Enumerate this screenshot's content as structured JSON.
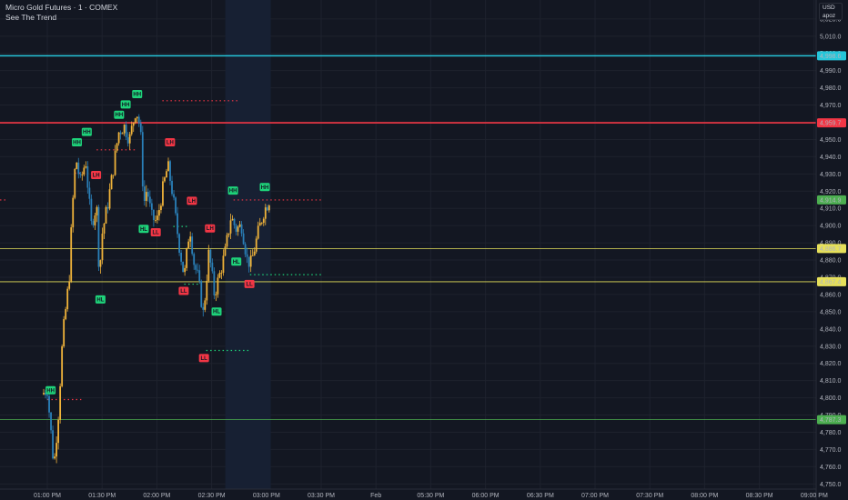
{
  "header": {
    "title": "Micro Gold Futures · 1 · COMEX",
    "indicator": "See The Trend"
  },
  "currency": {
    "code": "USD",
    "user": "apoz"
  },
  "colors": {
    "bg": "#131722",
    "up": "#f0b33a",
    "down": "#2a80b9",
    "cyan": "#26c6da",
    "red": "#f23645",
    "yellow": "#e6e05a",
    "green": "#4caf50",
    "label_green": "#1ed37a",
    "label_red": "#f23645",
    "grid": "#1e222d",
    "session": "#172033"
  },
  "chart_data": {
    "type": "candlestick",
    "x_ticks": [
      "01:00 PM",
      "01:30 PM",
      "02:00 PM",
      "02:30 PM",
      "03:00 PM",
      "03:30 PM",
      "Feb",
      "05:30 PM",
      "06:00 PM",
      "06:30 PM",
      "07:00 PM",
      "07:30 PM",
      "08:00 PM",
      "08:30 PM",
      "09:00 PM"
    ],
    "y_ticks": [
      4750,
      4760,
      4770,
      4780,
      4790,
      4800,
      4810,
      4820,
      4830,
      4840,
      4850,
      4860,
      4870,
      4880,
      4890,
      4900,
      4910,
      4920,
      4930,
      4940,
      4950,
      4960,
      4970,
      4980,
      4990,
      5000,
      5010,
      5020
    ],
    "ylim": [
      4747,
      5031
    ],
    "y_label_format": "comma-1dp",
    "session_shading": {
      "from": 3.25,
      "to": 4.08
    },
    "horizontal_lines": [
      {
        "price": 4998.6,
        "label": "4,998.6",
        "color": "cyan"
      },
      {
        "price": 4959.7,
        "label": "4,959.7",
        "color": "red"
      },
      {
        "price": 4886.7,
        "label": "4,886.7",
        "color": "yellow"
      },
      {
        "price": 4867.4,
        "label": "4,867.4",
        "color": "yellow"
      },
      {
        "price": 4787.3,
        "label": "4,787.3",
        "color": "green"
      }
    ],
    "last_price": {
      "price": 4914.9,
      "label": "4,914.9"
    },
    "dotted_levels": [
      {
        "price": 4972.5,
        "x1": 2.1,
        "x2": 3.5,
        "color": "red"
      },
      {
        "price": 4944.0,
        "x1": 0.9,
        "x2": 1.6,
        "color": "red"
      },
      {
        "price": 4930.5,
        "x1": 0.5,
        "x2": 0.85,
        "color": "red"
      },
      {
        "price": 4914.9,
        "x1": 3.4,
        "x2": 5.0,
        "color": "red"
      },
      {
        "price": 4914.9,
        "x1": -1.0,
        "x2": -0.9,
        "color": "red"
      },
      {
        "price": 4899.5,
        "x1": 2.3,
        "x2": 2.6,
        "color": "green"
      },
      {
        "price": 4871.5,
        "x1": 3.7,
        "x2": 5.0,
        "color": "green"
      },
      {
        "price": 4866.0,
        "x1": 2.5,
        "x2": 2.75,
        "color": "green"
      },
      {
        "price": 4827.5,
        "x1": 2.9,
        "x2": 3.7,
        "color": "green"
      },
      {
        "price": 4799.0,
        "x1": 0.0,
        "x2": 0.62,
        "color": "red"
      }
    ],
    "pivot_labels": [
      {
        "t": "HH",
        "x": 0.06,
        "p": 4802,
        "type": "high"
      },
      {
        "t": "HH",
        "x": 0.54,
        "p": 4946,
        "type": "high"
      },
      {
        "t": "HH",
        "x": 0.72,
        "p": 4952,
        "type": "high"
      },
      {
        "t": "LH",
        "x": 0.89,
        "p": 4927,
        "type": "high"
      },
      {
        "t": "HH",
        "x": 1.31,
        "p": 4962,
        "type": "high"
      },
      {
        "t": "HH",
        "x": 1.43,
        "p": 4968,
        "type": "high"
      },
      {
        "t": "HH",
        "x": 1.64,
        "p": 4974,
        "type": "high"
      },
      {
        "t": "LH",
        "x": 2.24,
        "p": 4946,
        "type": "high"
      },
      {
        "t": "LH",
        "x": 2.64,
        "p": 4912,
        "type": "high"
      },
      {
        "t": "LH",
        "x": 2.97,
        "p": 4896,
        "type": "high"
      },
      {
        "t": "HH",
        "x": 3.39,
        "p": 4918,
        "type": "high"
      },
      {
        "t": "HH",
        "x": 3.97,
        "p": 4920,
        "type": "high"
      },
      {
        "t": "HL",
        "x": 0.97,
        "p": 4860,
        "type": "low"
      },
      {
        "t": "HL",
        "x": 1.76,
        "p": 4901,
        "type": "low"
      },
      {
        "t": "LL",
        "x": 1.98,
        "p": 4899,
        "type": "low"
      },
      {
        "t": "LL",
        "x": 2.49,
        "p": 4865,
        "type": "low"
      },
      {
        "t": "LL",
        "x": 2.86,
        "p": 4826,
        "type": "low"
      },
      {
        "t": "HL",
        "x": 3.09,
        "p": 4853,
        "type": "low"
      },
      {
        "t": "HL",
        "x": 3.45,
        "p": 4882,
        "type": "low"
      },
      {
        "t": "LL",
        "x": 3.69,
        "p": 4869,
        "type": "low"
      }
    ],
    "close_path": [
      [
        -0.1,
        4802
      ],
      [
        0.0,
        4805
      ],
      [
        0.12,
        4760
      ],
      [
        0.2,
        4790
      ],
      [
        0.28,
        4835
      ],
      [
        0.4,
        4870
      ],
      [
        0.45,
        4906
      ],
      [
        0.52,
        4940
      ],
      [
        0.6,
        4925
      ],
      [
        0.7,
        4938
      ],
      [
        0.8,
        4900
      ],
      [
        0.9,
        4912
      ],
      [
        0.95,
        4870
      ],
      [
        1.0,
        4895
      ],
      [
        1.1,
        4912
      ],
      [
        1.2,
        4932
      ],
      [
        1.3,
        4954
      ],
      [
        1.4,
        4958
      ],
      [
        1.5,
        4950
      ],
      [
        1.62,
        4968
      ],
      [
        1.7,
        4956
      ],
      [
        1.76,
        4912
      ],
      [
        1.82,
        4922
      ],
      [
        1.9,
        4905
      ],
      [
        2.0,
        4902
      ],
      [
        2.1,
        4920
      ],
      [
        2.2,
        4935
      ],
      [
        2.28,
        4920
      ],
      [
        2.4,
        4890
      ],
      [
        2.5,
        4870
      ],
      [
        2.6,
        4900
      ],
      [
        2.68,
        4878
      ],
      [
        2.75,
        4870
      ],
      [
        2.85,
        4848
      ],
      [
        2.95,
        4885
      ],
      [
        3.05,
        4860
      ],
      [
        3.15,
        4872
      ],
      [
        3.25,
        4885
      ],
      [
        3.35,
        4905
      ],
      [
        3.45,
        4898
      ],
      [
        3.55,
        4900
      ],
      [
        3.65,
        4880
      ],
      [
        3.72,
        4878
      ],
      [
        3.85,
        4896
      ],
      [
        3.95,
        4908
      ],
      [
        4.05,
        4914.9
      ]
    ]
  }
}
